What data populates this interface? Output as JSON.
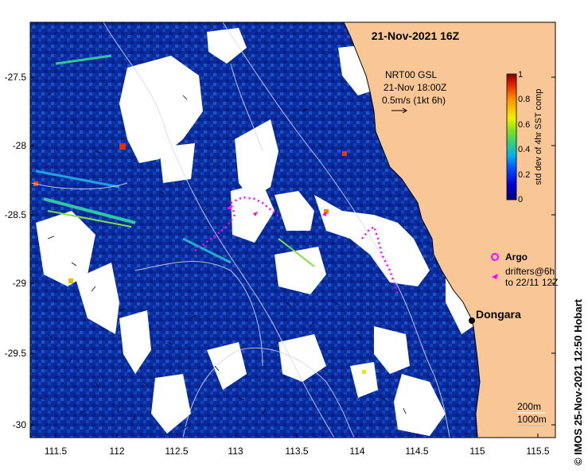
{
  "map": {
    "date_title": "21-Nov-2021 16Z",
    "product_line1": "NRT00 GSL",
    "product_line2": "21-Nov 18:00Z",
    "product_line3": "0.5m/s (1kt 6h)",
    "colorbar_label": "std dev of 4hr SST comp",
    "colorbar_ticks": [
      "0",
      "0.2",
      "0.4",
      "0.6",
      "0.8",
      "1"
    ],
    "colorbar_max": "1",
    "legend_argo": "Argo",
    "legend_drifters_line1": "drifters@6h",
    "legend_drifters_line2": "to 22/11 12Z",
    "depth_200": "200m",
    "depth_1000": "1000m",
    "town": "Dongara",
    "credit": "©  IMOS 25-Nov-2021 12:50 Hobart",
    "lon_ticks": [
      "111.5",
      "112",
      "112.5",
      "113",
      "113.5",
      "114",
      "114.5",
      "115",
      "115.5"
    ],
    "lat_ticks": [
      "-27.5",
      "-28",
      "-28.5",
      "-29",
      "-29.5",
      "-30"
    ],
    "colors": {
      "ocean": "#0a2a9c",
      "land": "#f9c796",
      "cloud": "#ffffff",
      "drifter": "#ff00ff"
    }
  }
}
